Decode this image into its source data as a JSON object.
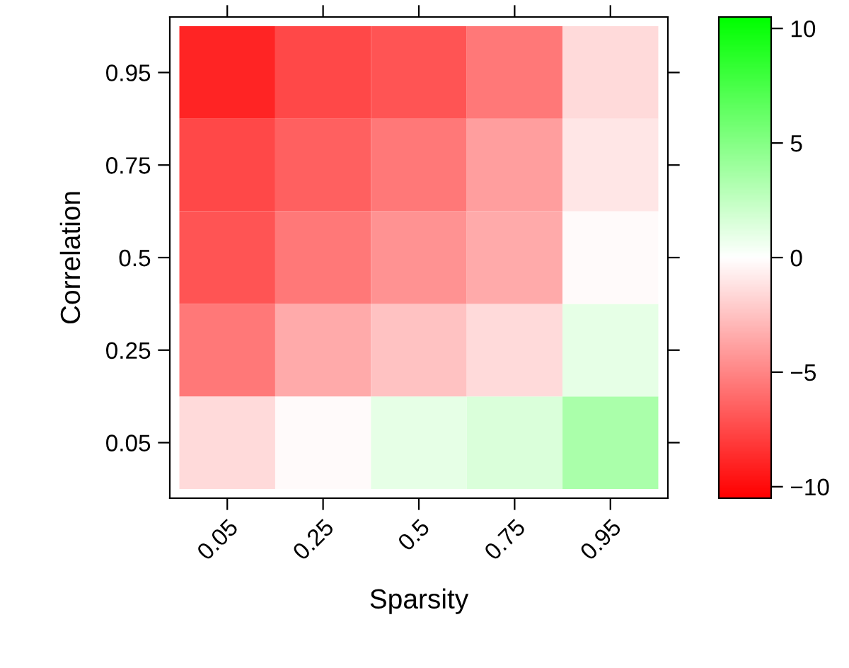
{
  "chart_data": {
    "type": "heatmap",
    "xlabel": "Sparsity",
    "ylabel": "Correlation",
    "categories": [
      "0.05",
      "0.25",
      "0.5",
      "0.75",
      "0.95"
    ],
    "y_categories": [
      "0.95",
      "0.75",
      "0.5",
      "0.25",
      "0.05"
    ],
    "cells": [
      [
        -9,
        -7.5,
        -7,
        -5.5,
        -1.5
      ],
      [
        -7.5,
        -6.5,
        -5.5,
        -4,
        -1
      ],
      [
        -7,
        -5.5,
        -4.5,
        -3.5,
        -0.2
      ],
      [
        -5.5,
        -3.5,
        -2.5,
        -1.5,
        1
      ],
      [
        -1.5,
        -0.2,
        1,
        1.5,
        3.5
      ]
    ],
    "clim": [
      -10.5,
      10.5
    ],
    "cticks": [
      -10,
      -5,
      0,
      5,
      10
    ]
  }
}
